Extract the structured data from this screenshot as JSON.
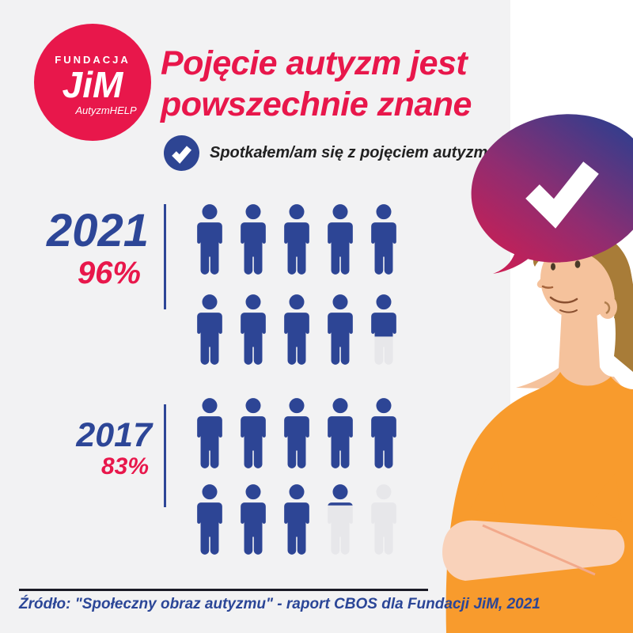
{
  "brand": {
    "name_top": "FUNDACJA",
    "name_main": "JiM",
    "name_sub": "AutyzmHELP",
    "circle_color": "#e8174b"
  },
  "header": {
    "title_line1": "Pojęcie autyzm jest",
    "title_line2": "powszechnie znane",
    "accent_color": "#e8174b"
  },
  "legend": {
    "label": "Spotkałem/am się z pojęciem autyzm",
    "badge_color": "#2e4593"
  },
  "chart_data": {
    "type": "pictogram",
    "title": "Pojęcie autyzm jest powszechnie znane",
    "annotation": "Spotkałem/am się z pojęciem autyzm",
    "icons_total": 10,
    "icons_per_row": 5,
    "percent_per_icon": 10,
    "icon_fill_color": "#2d4595",
    "icon_empty_color": "#e7e7ea",
    "label_color": "#2d4697",
    "value_color": "#e8174b",
    "series": [
      {
        "year": "2021",
        "value_percent": 96,
        "value_label": "96%"
      },
      {
        "year": "2017",
        "value_percent": 83,
        "value_label": "83%"
      }
    ]
  },
  "footer": {
    "source": "Źródło: \"Społeczny obraz autyzmu\" - raport CBOS dla Fundacji JiM, 2021"
  },
  "illustration": {
    "speech_bubble_gradient_start": "#d81b4e",
    "speech_bubble_gradient_mid": "#8f2d71",
    "speech_bubble_gradient_end": "#2f3e8e",
    "check_color": "#ffffff",
    "skin": "#f5c29c",
    "skin_light": "#f9d2ba",
    "hair": "#a87c38",
    "shirt": "#f89b2d",
    "background": "#f2f2f3",
    "panel": "#ffffff"
  }
}
